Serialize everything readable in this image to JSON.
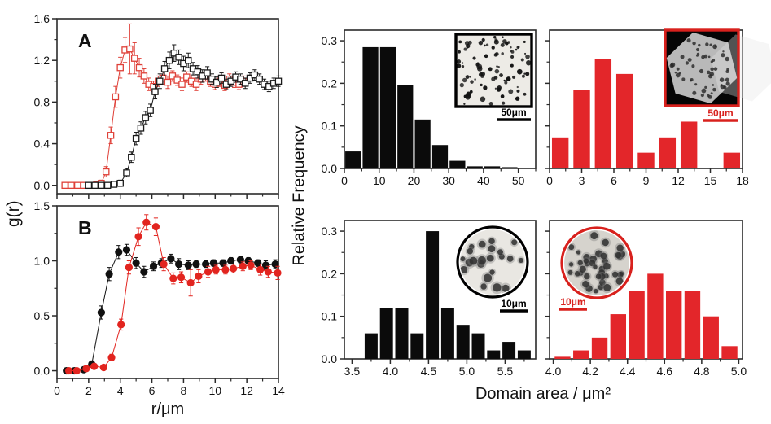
{
  "figure_labels": {
    "left_ylabel": "g(r)",
    "left_xlabel": "r/μm",
    "right_ylabel": "Relative Frequency",
    "right_xlabel": "Domain area / μm²"
  },
  "colors": {
    "red": "#e3262a",
    "black": "#1a1a1a",
    "axis": "#2b2b2b"
  },
  "chart_data": [
    {
      "id": "gr_panel_A",
      "type": "scatter",
      "panel_label": "A",
      "xlim": [
        0,
        14
      ],
      "ylim": [
        -0.08,
        1.6
      ],
      "xticks": [
        0,
        2,
        4,
        6,
        8,
        10,
        12,
        14
      ],
      "xtick_labels": null,
      "xminor_step": 1,
      "yticks": [
        0.0,
        0.4,
        0.8,
        1.2,
        1.6
      ],
      "ytick_labels": [
        "0.0",
        "0.4",
        "0.8",
        "1.2",
        "1.6"
      ],
      "yminor_step": 0.2,
      "series": [
        {
          "name": "red-open-squares",
          "color": "#df4038",
          "marker": "open-square",
          "x": [
            0.5,
            0.9,
            1.3,
            1.7,
            2.1,
            2.5,
            2.8,
            3.1,
            3.4,
            3.7,
            4.0,
            4.3,
            4.6,
            4.9,
            5.2,
            5.5,
            5.8,
            6.1,
            6.4,
            6.7,
            7.0,
            7.3,
            7.6,
            7.9,
            8.2,
            8.5,
            8.8,
            9.1,
            9.4,
            9.7,
            10.0,
            10.3,
            10.6,
            10.9,
            11.2,
            11.5,
            11.8
          ],
          "y": [
            0.0,
            0.0,
            0.0,
            0.0,
            0.0,
            0.01,
            0.02,
            0.13,
            0.48,
            0.85,
            1.13,
            1.3,
            1.31,
            1.22,
            1.13,
            1.05,
            0.97,
            0.95,
            1.0,
            1.03,
            0.99,
            1.05,
            1.01,
            0.97,
            1.04,
            1.0,
            0.97,
            1.02,
            1.05,
            1.0,
            0.97,
            1.0,
            0.96,
            1.02,
            0.99,
            0.97,
            1.0
          ],
          "yerr": [
            0.02,
            0.02,
            0.02,
            0.02,
            0.02,
            0.02,
            0.03,
            0.05,
            0.08,
            0.1,
            0.1,
            0.12,
            0.24,
            0.15,
            0.09,
            0.07,
            0.06,
            0.05,
            0.05,
            0.06,
            0.06,
            0.05,
            0.05,
            0.06,
            0.05,
            0.05,
            0.06,
            0.05,
            0.05,
            0.05,
            0.05,
            0.05,
            0.05,
            0.05,
            0.05,
            0.05,
            0.05
          ]
        },
        {
          "name": "black-open-squares",
          "color": "#1a1a1a",
          "marker": "open-square",
          "x": [
            2.0,
            2.4,
            2.8,
            3.2,
            3.6,
            4.0,
            4.4,
            4.7,
            5.0,
            5.3,
            5.6,
            5.9,
            6.2,
            6.5,
            6.8,
            7.1,
            7.4,
            7.7,
            8.0,
            8.3,
            8.6,
            8.9,
            9.2,
            9.5,
            9.8,
            10.1,
            10.4,
            10.7,
            11.0,
            11.3,
            11.6,
            11.9,
            12.2,
            12.5,
            12.8,
            13.1,
            13.4,
            13.7,
            14.0
          ],
          "y": [
            0.0,
            0.0,
            0.0,
            0.0,
            0.01,
            0.02,
            0.12,
            0.27,
            0.45,
            0.55,
            0.65,
            0.72,
            0.9,
            1.0,
            1.12,
            1.2,
            1.27,
            1.23,
            1.17,
            1.2,
            1.12,
            1.09,
            1.05,
            1.08,
            1.02,
            0.99,
            1.03,
            0.97,
            1.0,
            1.04,
            1.02,
            0.98,
            1.03,
            1.06,
            1.02,
            0.97,
            0.95,
            0.98,
            1.0
          ],
          "yerr": [
            0.02,
            0.02,
            0.02,
            0.02,
            0.02,
            0.03,
            0.04,
            0.05,
            0.06,
            0.06,
            0.06,
            0.06,
            0.07,
            0.07,
            0.07,
            0.08,
            0.08,
            0.07,
            0.07,
            0.07,
            0.06,
            0.06,
            0.06,
            0.06,
            0.05,
            0.05,
            0.05,
            0.05,
            0.05,
            0.05,
            0.05,
            0.05,
            0.05,
            0.05,
            0.05,
            0.05,
            0.05,
            0.05,
            0.05
          ]
        }
      ]
    },
    {
      "id": "gr_panel_B",
      "type": "scatter",
      "panel_label": "B",
      "xlim": [
        0,
        14
      ],
      "ylim": [
        -0.07,
        1.5
      ],
      "xticks": [
        0,
        2,
        4,
        6,
        8,
        10,
        12,
        14
      ],
      "xtick_labels": [
        "0",
        "2",
        "4",
        "6",
        "8",
        "10",
        "12",
        "14"
      ],
      "xminor_step": 1,
      "yticks": [
        0.0,
        0.5,
        1.0,
        1.5
      ],
      "ytick_labels": [
        "0.0",
        "0.5",
        "1.0",
        "1.5"
      ],
      "yminor_step": 0.25,
      "series": [
        {
          "name": "black-filled-circles",
          "color": "#111111",
          "marker": "filled-circle",
          "x": [
            0.6,
            1.1,
            1.7,
            2.2,
            2.8,
            3.3,
            3.9,
            4.4,
            5.0,
            5.5,
            6.1,
            6.6,
            7.2,
            7.7,
            8.3,
            8.8,
            9.4,
            9.9,
            10.5,
            11.0,
            11.6,
            12.1,
            12.7,
            13.2,
            13.8
          ],
          "y": [
            0.0,
            0.0,
            0.01,
            0.06,
            0.53,
            0.88,
            1.08,
            1.1,
            0.98,
            0.9,
            0.95,
            0.98,
            1.02,
            0.97,
            0.96,
            0.97,
            0.97,
            0.98,
            0.98,
            1.0,
            1.01,
            1.0,
            0.98,
            0.96,
            0.97
          ],
          "yerr": [
            0.02,
            0.02,
            0.02,
            0.03,
            0.06,
            0.06,
            0.06,
            0.05,
            0.05,
            0.05,
            0.04,
            0.04,
            0.04,
            0.05,
            0.04,
            0.03,
            0.03,
            0.03,
            0.03,
            0.03,
            0.03,
            0.03,
            0.03,
            0.04,
            0.04
          ]
        },
        {
          "name": "red-filled-circles",
          "color": "#e2241f",
          "marker": "filled-circle",
          "x": [
            0.75,
            1.25,
            1.85,
            2.35,
            2.95,
            3.45,
            4.05,
            4.55,
            5.15,
            5.65,
            6.25,
            6.75,
            7.35,
            7.85,
            8.45,
            8.95,
            9.55,
            10.05,
            10.65,
            11.15,
            11.75,
            12.25,
            12.85,
            13.35,
            13.95
          ],
          "y": [
            0.0,
            0.0,
            0.02,
            0.04,
            0.03,
            0.12,
            0.42,
            0.94,
            1.22,
            1.35,
            1.31,
            0.97,
            0.84,
            0.85,
            0.8,
            0.86,
            0.9,
            0.92,
            0.92,
            0.93,
            0.95,
            0.96,
            0.92,
            0.9,
            0.89
          ],
          "yerr": [
            0.02,
            0.02,
            0.02,
            0.02,
            0.02,
            0.03,
            0.05,
            0.06,
            0.08,
            0.07,
            0.08,
            0.06,
            0.05,
            0.05,
            0.12,
            0.06,
            0.05,
            0.04,
            0.04,
            0.04,
            0.04,
            0.04,
            0.05,
            0.05,
            0.06
          ]
        }
      ]
    },
    {
      "id": "hist_top_left",
      "type": "bar",
      "bar_color": "#0b0b0b",
      "xlim": [
        0,
        55
      ],
      "xticks": [
        0,
        10,
        20,
        30,
        40,
        50
      ],
      "xtick_labels": [
        "0",
        "10",
        "20",
        "30",
        "40",
        "50"
      ],
      "xminor_step": 5,
      "ylim": [
        0,
        0.325
      ],
      "yticks": [
        0.0,
        0.1,
        0.2,
        0.3
      ],
      "ytick_labels": [
        "0.0",
        "0.1",
        "0.2",
        "0.3"
      ],
      "yminor_step": 0.05,
      "bin_centers": [
        2.5,
        7.5,
        12.5,
        17.5,
        22.5,
        27.5,
        32.5,
        37.5,
        42.5,
        47.5
      ],
      "bar_width": 4.5,
      "values": [
        0.04,
        0.285,
        0.285,
        0.195,
        0.115,
        0.055,
        0.018,
        0.005,
        0.005,
        0.003
      ],
      "inset": {
        "shape": "square",
        "border_color": "#000000",
        "scalebar_label": "50μm",
        "scalebar_color": "#000000",
        "variant": "dots-on-light",
        "seed": 11
      }
    },
    {
      "id": "hist_top_right",
      "type": "bar",
      "bar_color": "#e3262a",
      "xlim": [
        0,
        18
      ],
      "xticks": [
        0,
        3,
        6,
        9,
        12,
        15,
        18
      ],
      "xtick_labels": [
        "0",
        "3",
        "6",
        "9",
        "12",
        "15",
        "18"
      ],
      "xminor_step": 1.5,
      "ylim": [
        0,
        0.325
      ],
      "yticks": [
        0.0,
        0.1,
        0.2,
        0.3
      ],
      "ytick_labels": [],
      "yminor_step": 0.05,
      "bin_centers": [
        1,
        3,
        5,
        7,
        9,
        11,
        13,
        17
      ],
      "bar_width": 1.55,
      "values": [
        0.073,
        0.185,
        0.258,
        0.222,
        0.037,
        0.073,
        0.11,
        0.037
      ],
      "inset": {
        "shape": "square",
        "border_color": "#d8211d",
        "scalebar_label": "50μm",
        "scalebar_color": "#d8211d",
        "variant": "hexagon-crystal",
        "seed": 23
      }
    },
    {
      "id": "hist_bottom_left",
      "type": "bar",
      "bar_color": "#0b0b0b",
      "xlim": [
        3.4,
        5.9
      ],
      "xticks": [
        3.5,
        4.0,
        4.5,
        5.0,
        5.5
      ],
      "xtick_labels": [
        "3.5",
        "4.0",
        "4.5",
        "5.0",
        "5.5"
      ],
      "xminor_step": 0.25,
      "ylim": [
        0,
        0.325
      ],
      "yticks": [
        0.0,
        0.1,
        0.2,
        0.3
      ],
      "ytick_labels": [
        "0.0",
        "0.1",
        "0.2",
        "0.3"
      ],
      "yminor_step": 0.05,
      "bin_centers": [
        3.75,
        3.95,
        4.15,
        4.35,
        4.55,
        4.75,
        4.95,
        5.15,
        5.35,
        5.55,
        5.75
      ],
      "bar_width": 0.17,
      "values": [
        0.06,
        0.12,
        0.12,
        0.06,
        0.3,
        0.12,
        0.08,
        0.06,
        0.02,
        0.04,
        0.02
      ],
      "inset": {
        "shape": "circle",
        "border_color": "#000000",
        "scalebar_label": "10μm",
        "scalebar_color": "#000000",
        "variant": "fuzzy-dots",
        "seed": 37
      }
    },
    {
      "id": "hist_bottom_right",
      "type": "bar",
      "bar_color": "#e3262a",
      "xlim": [
        3.98,
        5.02
      ],
      "xticks": [
        4.0,
        4.2,
        4.4,
        4.6,
        4.8,
        5.0
      ],
      "xtick_labels": [
        "4.0",
        "4.2",
        "4.4",
        "4.6",
        "4.8",
        "5.0"
      ],
      "xminor_step": 0.1,
      "ylim": [
        0,
        0.325
      ],
      "yticks": [
        0.0,
        0.1,
        0.2,
        0.3
      ],
      "ytick_labels": [],
      "yminor_step": 0.05,
      "bin_centers": [
        4.05,
        4.15,
        4.25,
        4.35,
        4.45,
        4.55,
        4.65,
        4.75,
        4.85,
        4.95
      ],
      "bar_width": 0.085,
      "values": [
        0.005,
        0.02,
        0.05,
        0.105,
        0.16,
        0.2,
        0.16,
        0.16,
        0.1,
        0.03
      ],
      "inset": {
        "shape": "circle",
        "border_color": "#d8211d",
        "scalebar_label": "10μm",
        "scalebar_color": "#d8211d",
        "variant": "dense-dots",
        "seed": 53
      }
    }
  ]
}
